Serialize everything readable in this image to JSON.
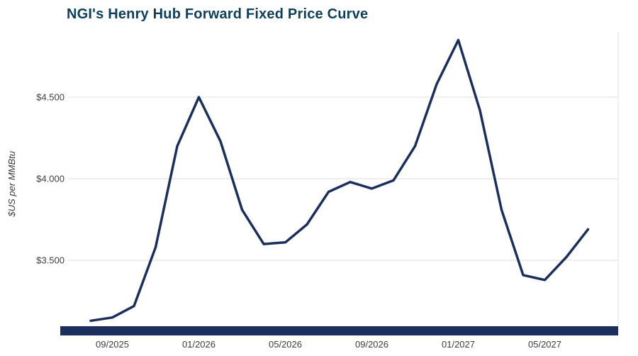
{
  "colors": {
    "line": "#1b2f5e",
    "title": "#0d3e5c",
    "grid": "#dcdcdc",
    "plot_border": "#e3e3e3",
    "tick_text": "#3d3d3d",
    "axis_band": "#1b2f5e"
  },
  "chart_data": {
    "type": "line",
    "title": "NGI's Henry Hub Forward Fixed Price Curve",
    "xlabel": "",
    "ylabel": "$US per MMBtu",
    "legend": "none",
    "grid": "horizontal",
    "x": [
      "08/2025",
      "09/2025",
      "10/2025",
      "11/2025",
      "12/2025",
      "01/2026",
      "02/2026",
      "03/2026",
      "04/2026",
      "05/2026",
      "06/2026",
      "07/2026",
      "08/2026",
      "09/2026",
      "10/2026",
      "11/2026",
      "12/2026",
      "01/2027",
      "02/2027",
      "03/2027",
      "04/2027",
      "05/2027",
      "06/2027",
      "07/2027"
    ],
    "values": [
      3.13,
      3.15,
      3.22,
      3.58,
      4.2,
      4.5,
      4.23,
      3.81,
      3.6,
      3.61,
      3.72,
      3.92,
      3.98,
      3.94,
      3.99,
      4.2,
      4.58,
      4.85,
      4.42,
      3.81,
      3.41,
      3.38,
      3.52,
      3.69
    ],
    "x_tick_labels": [
      "09/2025",
      "01/2026",
      "05/2026",
      "09/2026",
      "01/2027",
      "05/2027"
    ],
    "y_ticks": [
      3.5,
      4.0,
      4.5
    ],
    "y_tick_labels": [
      "$3.500",
      "$4.000",
      "$4.500"
    ],
    "ylim": [
      3.04,
      4.9
    ],
    "series_name": "Henry Hub forward fixed price"
  }
}
